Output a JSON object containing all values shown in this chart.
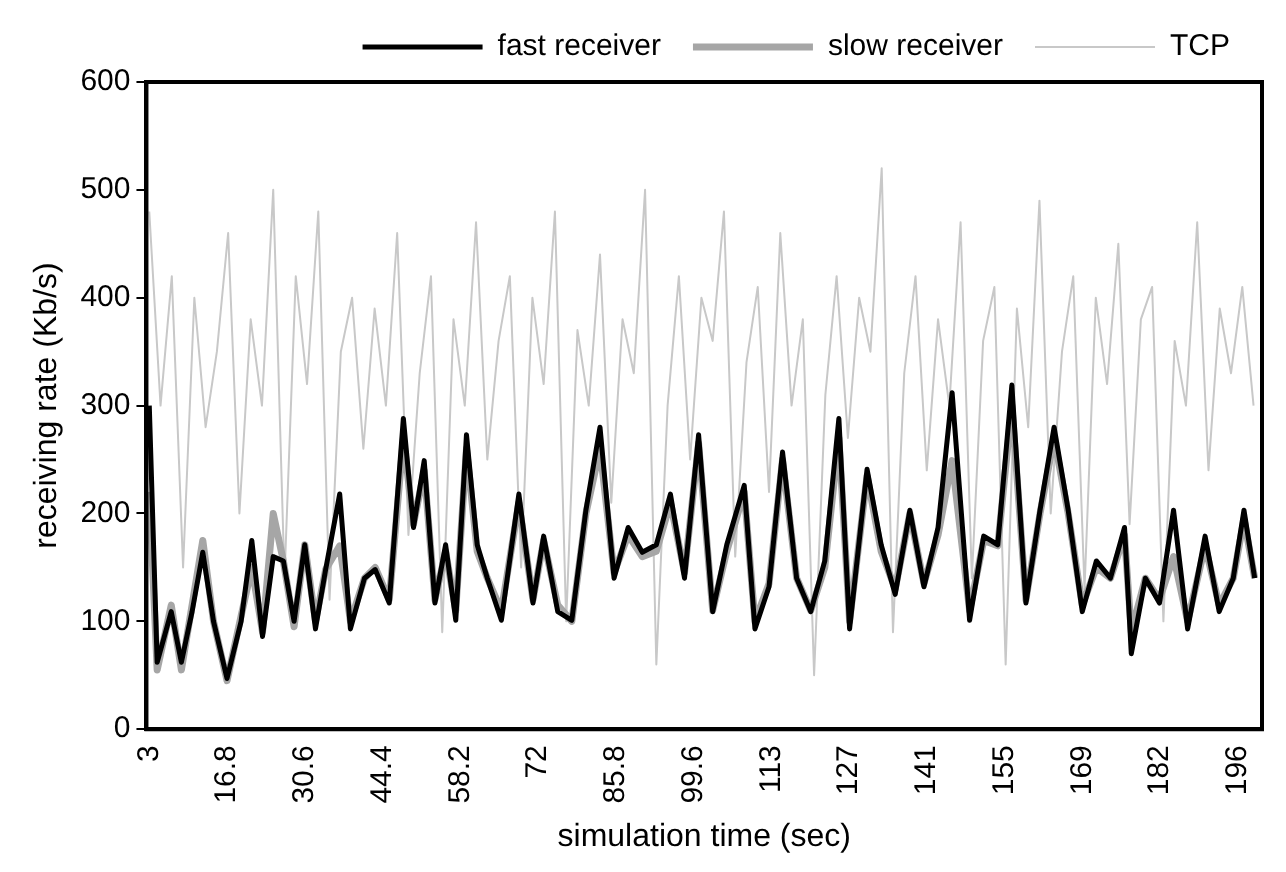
{
  "chart_data": {
    "type": "line",
    "xlabel": "simulation time (sec)",
    "ylabel": "receiving rate (Kb/s)",
    "legend": "top right",
    "grid": false,
    "marker": "none",
    "line_style": "solid",
    "xlim": [
      2.5,
      200.5
    ],
    "xticks": [
      3,
      16.8,
      30.6,
      44.4,
      58.2,
      72,
      85.8,
      99.6,
      {
        "value": 113.4,
        "label": "113"
      },
      {
        "value": 127.2,
        "label": "127"
      },
      141,
      {
        "value": 154.8,
        "label": "155"
      },
      {
        "value": 168.6,
        "label": "169"
      },
      {
        "value": 182.4,
        "label": "182"
      },
      {
        "value": 196.2,
        "label": "196"
      }
    ],
    "ylim": [
      0,
      600
    ],
    "yticks": [
      0,
      100,
      200,
      300,
      400,
      500,
      600
    ],
    "x": [
      3,
      4.4,
      6.9,
      8.7,
      10.6,
      12.5,
      14.4,
      16.8,
      19.3,
      21.2,
      23.1,
      25,
      26.8,
      28.7,
      30.6,
      32.5,
      34.3,
      36.8,
      38.7,
      41.2,
      43.1,
      45.6,
      48.1,
      49.9,
      51.8,
      53.7,
      55.6,
      57.4,
      59.3,
      61.2,
      63,
      65.5,
      68.6,
      71.1,
      73,
      75.5,
      78,
      80.5,
      83,
      85.5,
      88,
      90.5,
      93,
      95.5,
      98,
      100.5,
      103,
      105.5,
      108.6,
      110.5,
      113,
      115.4,
      117.9,
      120.4,
      122.9,
      125.4,
      127.3,
      130.4,
      132.9,
      135.4,
      138,
      140.5,
      143,
      145.5,
      148.6,
      151.1,
      153.6,
      156.1,
      158.6,
      161.1,
      163.6,
      166.1,
      168.6,
      171.1,
      173.6,
      176.1,
      177.3,
      179.8,
      182.3,
      184.8,
      187.3,
      190.4,
      192.9,
      195.4,
      197.3,
      199.2
    ],
    "series": [
      {
        "name": "fast receiver",
        "color": "#000000",
        "values": [
          300,
          62,
          109,
          62,
          109,
          164,
          100,
          47,
          100,
          175,
          86,
          160,
          156,
          100,
          171,
          93,
          148,
          218,
          93,
          140,
          148,
          117,
          288,
          187,
          249,
          117,
          171,
          101,
          273,
          171,
          140,
          101,
          218,
          117,
          179,
          109,
          101,
          203,
          280,
          140,
          187,
          164,
          171,
          218,
          140,
          273,
          109,
          171,
          226,
          93,
          132,
          257,
          140,
          109,
          156,
          288,
          93,
          241,
          171,
          125,
          203,
          132,
          187,
          312,
          101,
          179,
          171,
          319,
          117,
          203,
          280,
          203,
          109,
          156,
          140,
          187,
          70,
          140,
          117,
          203,
          93,
          179,
          109,
          140,
          203,
          140
        ]
      },
      {
        "name": "slow receiver",
        "color": "#a6a6a6",
        "values": [
          220,
          55,
          115,
          55,
          115,
          175,
          100,
          45,
          105,
          150,
          90,
          200,
          156,
          95,
          171,
          100,
          148,
          170,
          100,
          140,
          150,
          120,
          270,
          190,
          240,
          120,
          165,
          110,
          260,
          165,
          140,
          110,
          210,
          120,
          175,
          115,
          100,
          200,
          260,
          145,
          180,
          160,
          165,
          210,
          145,
          265,
          110,
          165,
          220,
          100,
          135,
          250,
          140,
          110,
          150,
          270,
          100,
          235,
          165,
          130,
          200,
          135,
          180,
          249,
          110,
          175,
          170,
          300,
          120,
          200,
          270,
          200,
          115,
          150,
          140,
          180,
          90,
          140,
          120,
          160,
          100,
          170,
          115,
          140,
          195,
          140
        ]
      },
      {
        "name": "TCP",
        "color": "#c8c8c8",
        "x": [
          3,
          5,
          7,
          9,
          11,
          13,
          15,
          17,
          19,
          21,
          23,
          25,
          27,
          29,
          31,
          33,
          35,
          37,
          39,
          41,
          43,
          45,
          47,
          49,
          51,
          53,
          55,
          57,
          59,
          61,
          63,
          65,
          67,
          69,
          71,
          73,
          75,
          77,
          79,
          81,
          83,
          85,
          87,
          89,
          91,
          93,
          95,
          97,
          99,
          101,
          103,
          105,
          107,
          109,
          111,
          113,
          115,
          117,
          119,
          121,
          123,
          125,
          127,
          129,
          131,
          133,
          135,
          137,
          139,
          141,
          143,
          145,
          147,
          149,
          151,
          153,
          155,
          157,
          159,
          161,
          163,
          165,
          167,
          169,
          171,
          173,
          175,
          177,
          179,
          181,
          183,
          185,
          187,
          189,
          191,
          193,
          195,
          197,
          199
        ],
        "values": [
          480,
          300,
          420,
          150,
          400,
          280,
          350,
          460,
          200,
          380,
          300,
          500,
          140,
          420,
          320,
          480,
          120,
          350,
          400,
          260,
          390,
          300,
          460,
          180,
          330,
          420,
          90,
          380,
          300,
          470,
          250,
          360,
          420,
          150,
          400,
          320,
          480,
          100,
          370,
          300,
          440,
          210,
          380,
          330,
          500,
          60,
          300,
          420,
          250,
          400,
          360,
          480,
          160,
          340,
          410,
          220,
          460,
          300,
          380,
          50,
          310,
          420,
          270,
          400,
          350,
          520,
          90,
          330,
          420,
          240,
          380,
          300,
          470,
          140,
          360,
          410,
          60,
          390,
          280,
          490,
          200,
          350,
          420,
          130,
          400,
          320,
          450,
          190,
          380,
          410,
          100,
          360,
          300,
          470,
          240,
          390,
          330,
          410,
          300
        ]
      }
    ]
  }
}
